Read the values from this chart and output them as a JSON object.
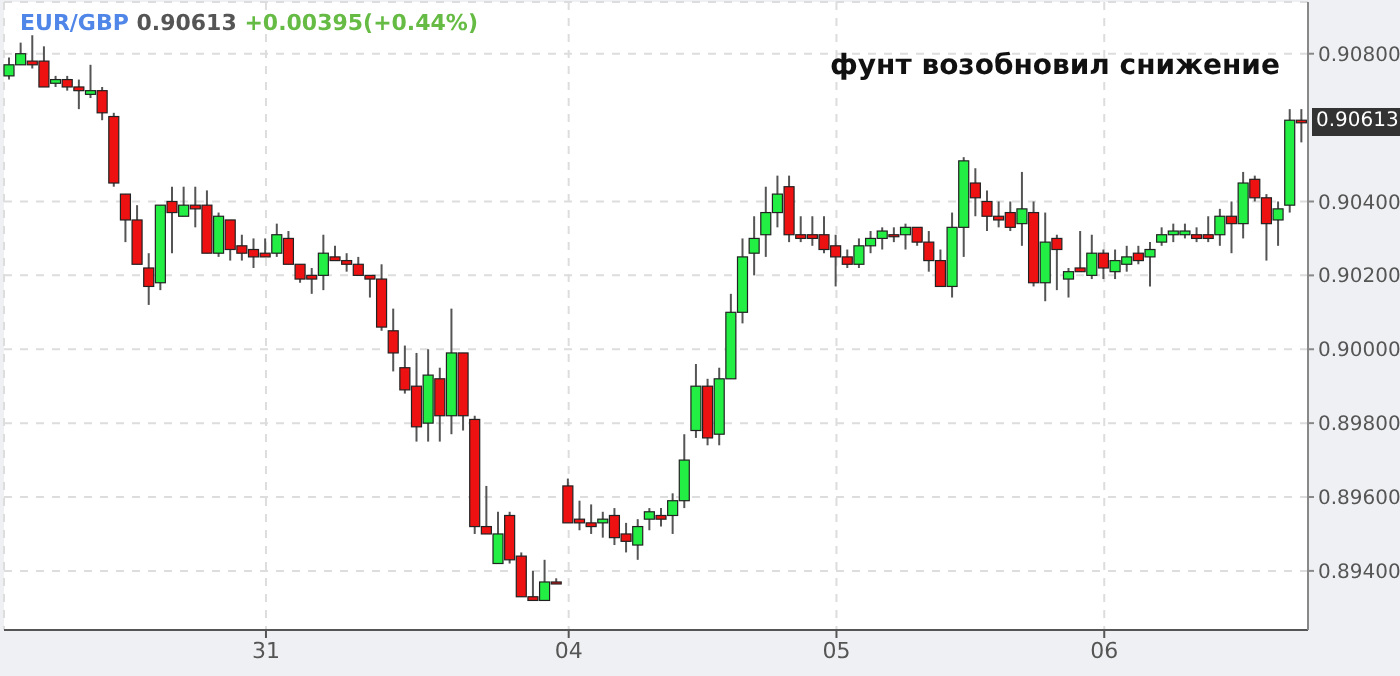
{
  "chart_data": {
    "type": "candlestick",
    "title": "EUR/GBP 0.90613 +0.00395(+0.44%)",
    "annotations": [
      "фунт возобновил снижение",
      "0.90613"
    ],
    "categories": [
      null,
      null,
      null,
      null,
      null,
      null,
      null,
      null,
      null,
      null,
      null,
      null,
      null,
      null,
      null,
      null,
      null,
      null,
      null,
      null,
      null,
      null,
      "31",
      null,
      null,
      null,
      null,
      null,
      null,
      null,
      null,
      null,
      null,
      null,
      null,
      null,
      null,
      null,
      null,
      null,
      null,
      null,
      null,
      null,
      null,
      null,
      null,
      null,
      "04",
      null,
      null,
      null,
      null,
      null,
      null,
      null,
      null,
      null,
      null,
      null,
      null,
      null,
      null,
      null,
      null,
      null,
      null,
      null,
      null,
      null,
      null,
      "05",
      null,
      null,
      null,
      null,
      null,
      null,
      null,
      null,
      null,
      null,
      null,
      null,
      null,
      null,
      null,
      null,
      null,
      null,
      null,
      null,
      null,
      null,
      "06",
      null,
      null,
      null,
      null,
      null,
      null,
      null,
      null,
      null,
      null,
      null,
      null,
      null,
      null,
      null,
      null,
      null
    ],
    "ohlc": [
      [
        0.9074,
        0.9079,
        0.9073,
        0.9077
      ],
      [
        0.9077,
        0.9083,
        0.9077,
        0.908
      ],
      [
        0.9078,
        0.9085,
        0.9076,
        0.9077
      ],
      [
        0.9078,
        0.9082,
        0.9071,
        0.9071
      ],
      [
        0.9072,
        0.9074,
        0.9071,
        0.9073
      ],
      [
        0.9073,
        0.9074,
        0.907,
        0.9071
      ],
      [
        0.9071,
        0.9073,
        0.9065,
        0.907
      ],
      [
        0.9069,
        0.9077,
        0.9068,
        0.907
      ],
      [
        0.907,
        0.9071,
        0.9062,
        0.9064
      ],
      [
        0.9063,
        0.9064,
        0.9044,
        0.9045
      ],
      [
        0.9042,
        0.9042,
        0.9029,
        0.9035
      ],
      [
        0.9035,
        0.9039,
        0.9023,
        0.9023
      ],
      [
        0.9022,
        0.9026,
        0.9012,
        0.9017
      ],
      [
        0.9018,
        0.9039,
        0.9016,
        0.9039
      ],
      [
        0.904,
        0.9044,
        0.9026,
        0.9037
      ],
      [
        0.9036,
        0.9044,
        0.9036,
        0.9039
      ],
      [
        0.9039,
        0.9044,
        0.9033,
        0.9038
      ],
      [
        0.9039,
        0.9043,
        0.9026,
        0.9026
      ],
      [
        0.9026,
        0.9037,
        0.9025,
        0.9036
      ],
      [
        0.9035,
        0.9035,
        0.9024,
        0.9027
      ],
      [
        0.9028,
        0.9031,
        0.9024,
        0.9026
      ],
      [
        0.9027,
        0.903,
        0.9022,
        0.9025
      ],
      [
        0.9026,
        0.903,
        0.9025,
        0.9025
      ],
      [
        0.9026,
        0.9034,
        0.9025,
        0.9031
      ],
      [
        0.903,
        0.9032,
        0.9023,
        0.9023
      ],
      [
        0.9023,
        0.9023,
        0.9018,
        0.9019
      ],
      [
        0.902,
        0.9022,
        0.9015,
        0.9019
      ],
      [
        0.902,
        0.9031,
        0.9016,
        0.9026
      ],
      [
        0.9025,
        0.9028,
        0.9024,
        0.9024
      ],
      [
        0.9024,
        0.9026,
        0.9021,
        0.9023
      ],
      [
        0.9023,
        0.9025,
        0.902,
        0.902
      ],
      [
        0.902,
        0.902,
        0.9014,
        0.9019
      ],
      [
        0.9019,
        0.9023,
        0.9005,
        0.9006
      ],
      [
        0.9005,
        0.9011,
        0.8994,
        0.8999
      ],
      [
        0.8995,
        0.9001,
        0.8988,
        0.8989
      ],
      [
        0.899,
        0.8999,
        0.8975,
        0.8979
      ],
      [
        0.898,
        0.9,
        0.8975,
        0.8993
      ],
      [
        0.8992,
        0.8995,
        0.8975,
        0.8982
      ],
      [
        0.8982,
        0.9011,
        0.8977,
        0.8999
      ],
      [
        0.8999,
        0.8999,
        0.8978,
        0.8982
      ],
      [
        0.8981,
        0.8982,
        0.895,
        0.8952
      ],
      [
        0.8952,
        0.8963,
        0.895,
        0.895
      ],
      [
        0.8942,
        0.8956,
        0.8942,
        0.895
      ],
      [
        0.8955,
        0.8956,
        0.8942,
        0.8943
      ],
      [
        0.8944,
        0.8945,
        0.8933,
        0.8933
      ],
      [
        0.8933,
        0.894,
        0.8932,
        0.8932
      ],
      [
        0.8932,
        0.8943,
        0.8932,
        0.8937
      ],
      [
        0.8937,
        0.8938,
        0.8937,
        0.8937
      ],
      [
        0.8963,
        0.8965,
        0.8953,
        0.8953
      ],
      [
        0.8954,
        0.8959,
        0.8951,
        0.8953
      ],
      [
        0.8953,
        0.8958,
        0.895,
        0.8952
      ],
      [
        0.8953,
        0.8956,
        0.8949,
        0.8954
      ],
      [
        0.8955,
        0.8957,
        0.8947,
        0.8949
      ],
      [
        0.895,
        0.8953,
        0.8945,
        0.8948
      ],
      [
        0.8947,
        0.8954,
        0.8943,
        0.8952
      ],
      [
        0.8954,
        0.8957,
        0.8951,
        0.8956
      ],
      [
        0.8955,
        0.8957,
        0.8952,
        0.8954
      ],
      [
        0.8955,
        0.8961,
        0.895,
        0.8959
      ],
      [
        0.8959,
        0.8977,
        0.8957,
        0.897
      ],
      [
        0.8978,
        0.8996,
        0.8976,
        0.899
      ],
      [
        0.899,
        0.8992,
        0.8974,
        0.8976
      ],
      [
        0.8977,
        0.8995,
        0.8974,
        0.8992
      ],
      [
        0.8992,
        0.9015,
        0.8992,
        0.901
      ],
      [
        0.901,
        0.903,
        0.9007,
        0.9025
      ],
      [
        0.9026,
        0.9036,
        0.902,
        0.903
      ],
      [
        0.9031,
        0.9044,
        0.9025,
        0.9037
      ],
      [
        0.9037,
        0.9047,
        0.9033,
        0.9042
      ],
      [
        0.9044,
        0.9047,
        0.9029,
        0.9031
      ],
      [
        0.9031,
        0.9036,
        0.9029,
        0.903
      ],
      [
        0.9031,
        0.9036,
        0.9028,
        0.903
      ],
      [
        0.9031,
        0.9036,
        0.9026,
        0.9027
      ],
      [
        0.9028,
        0.9031,
        0.9017,
        0.9025
      ],
      [
        0.9025,
        0.9027,
        0.9022,
        0.9023
      ],
      [
        0.9023,
        0.903,
        0.9022,
        0.9028
      ],
      [
        0.9028,
        0.9032,
        0.9026,
        0.903
      ],
      [
        0.903,
        0.9033,
        0.9027,
        0.9032
      ],
      [
        0.9031,
        0.9033,
        0.9029,
        0.9031
      ],
      [
        0.9031,
        0.9034,
        0.9027,
        0.9033
      ],
      [
        0.9033,
        0.9033,
        0.9028,
        0.9029
      ],
      [
        0.9029,
        0.9032,
        0.9021,
        0.9024
      ],
      [
        0.9024,
        0.9027,
        0.9017,
        0.9017
      ],
      [
        0.9017,
        0.9037,
        0.9014,
        0.9033
      ],
      [
        0.9033,
        0.9052,
        0.9025,
        0.9051
      ],
      [
        0.9045,
        0.9049,
        0.9036,
        0.9041
      ],
      [
        0.904,
        0.9043,
        0.9032,
        0.9036
      ],
      [
        0.9036,
        0.904,
        0.9033,
        0.9035
      ],
      [
        0.9037,
        0.904,
        0.9032,
        0.9033
      ],
      [
        0.9034,
        0.9048,
        0.9028,
        0.9038
      ],
      [
        0.9037,
        0.904,
        0.9017,
        0.9018
      ],
      [
        0.9018,
        0.9037,
        0.9013,
        0.9029
      ],
      [
        0.903,
        0.9031,
        0.9016,
        0.9027
      ],
      [
        0.9019,
        0.9022,
        0.9014,
        0.9021
      ],
      [
        0.9022,
        0.9032,
        0.9021,
        0.9021
      ],
      [
        0.902,
        0.9031,
        0.9019,
        0.9026
      ],
      [
        0.9026,
        0.9027,
        0.9019,
        0.9022
      ],
      [
        0.9021,
        0.9027,
        0.9019,
        0.9024
      ],
      [
        0.9023,
        0.9028,
        0.9021,
        0.9025
      ],
      [
        0.9026,
        0.9028,
        0.9023,
        0.9024
      ],
      [
        0.9025,
        0.9029,
        0.9017,
        0.9027
      ],
      [
        0.9029,
        0.9033,
        0.9028,
        0.9031
      ],
      [
        0.9031,
        0.9034,
        0.9029,
        0.9032
      ],
      [
        0.9031,
        0.9034,
        0.903,
        0.9032
      ],
      [
        0.9031,
        0.9033,
        0.9029,
        0.903
      ],
      [
        0.9031,
        0.9036,
        0.9029,
        0.903
      ],
      [
        0.9031,
        0.9038,
        0.9028,
        0.9036
      ],
      [
        0.9036,
        0.904,
        0.9026,
        0.9034
      ],
      [
        0.9034,
        0.9048,
        0.903,
        0.9045
      ],
      [
        0.9046,
        0.9047,
        0.904,
        0.9041
      ],
      [
        0.9041,
        0.9042,
        0.9024,
        0.9034
      ],
      [
        0.9035,
        0.904,
        0.9028,
        0.9038
      ],
      [
        0.9039,
        0.9065,
        0.9037,
        0.9062
      ],
      [
        0.9062,
        0.9065,
        0.9056,
        0.90613
      ]
    ],
    "colors": [
      "#22ee44",
      "#22ee44",
      "#ee1111",
      "#ee1111",
      "#22ee44",
      "#ee1111",
      "#ee1111",
      "#22ee44",
      "#ee1111",
      "#ee1111",
      "#ee1111",
      "#ee1111",
      "#ee1111",
      "#22ee44",
      "#ee1111",
      "#22ee44",
      "#ee1111",
      "#ee1111",
      "#22ee44",
      "#ee1111",
      "#ee1111",
      "#ee1111",
      "#ee1111",
      "#22ee44",
      "#ee1111",
      "#ee1111",
      "#ee1111",
      "#22ee44",
      "#ee1111",
      "#ee1111",
      "#ee1111",
      "#ee1111",
      "#ee1111",
      "#ee1111",
      "#ee1111",
      "#ee1111",
      "#22ee44",
      "#ee1111",
      "#22ee44",
      "#ee1111",
      "#ee1111",
      "#ee1111",
      "#22ee44",
      "#ee1111",
      "#ee1111",
      "#ee1111",
      "#22ee44",
      "#ee1111",
      "#ee1111",
      "#ee1111",
      "#ee1111",
      "#22ee44",
      "#ee1111",
      "#ee1111",
      "#22ee44",
      "#22ee44",
      "#ee1111",
      "#22ee44",
      "#22ee44",
      "#22ee44",
      "#ee1111",
      "#22ee44",
      "#22ee44",
      "#22ee44",
      "#22ee44",
      "#22ee44",
      "#22ee44",
      "#ee1111",
      "#ee1111",
      "#ee1111",
      "#ee1111",
      "#ee1111",
      "#ee1111",
      "#22ee44",
      "#22ee44",
      "#22ee44",
      "#ee1111",
      "#22ee44",
      "#ee1111",
      "#ee1111",
      "#ee1111",
      "#22ee44",
      "#22ee44",
      "#ee1111",
      "#ee1111",
      "#ee1111",
      "#ee1111",
      "#22ee44",
      "#ee1111",
      "#22ee44",
      "#ee1111",
      "#22ee44",
      "#ee1111",
      "#22ee44",
      "#ee1111",
      "#22ee44",
      "#22ee44",
      "#ee1111",
      "#22ee44",
      "#22ee44",
      "#22ee44",
      "#22ee44",
      "#ee1111",
      "#ee1111",
      "#22ee44",
      "#ee1111",
      "#22ee44",
      "#ee1111",
      "#ee1111",
      "#22ee44",
      "#22ee44",
      "#ee1111"
    ],
    "ylim": [
      0.8924,
      0.9094
    ],
    "yticks": [
      {
        "value": 0.894,
        "label": "0.89400"
      },
      {
        "value": 0.896,
        "label": "0.89600"
      },
      {
        "value": 0.898,
        "label": "0.89800"
      },
      {
        "value": 0.9,
        "label": "0.90000"
      },
      {
        "value": 0.902,
        "label": "0.90200"
      },
      {
        "value": 0.904,
        "label": "0.90400"
      },
      {
        "value": 0.908,
        "label": "0.90800"
      }
    ],
    "grid": true
  }
}
